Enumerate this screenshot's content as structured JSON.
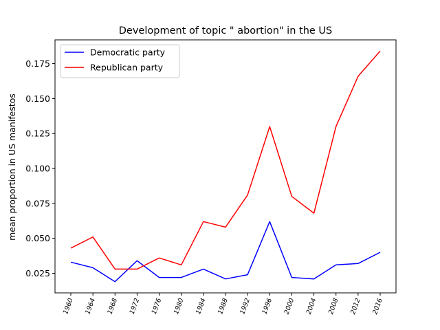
{
  "chart_data": {
    "type": "line",
    "title": "Development of topic \" abortion\" in the US",
    "xlabel": "",
    "ylabel": "mean proportion in US manifestos",
    "categories": [
      "1960",
      "1964",
      "1968",
      "1972",
      "1976",
      "1980",
      "1984",
      "1988",
      "1992",
      "1996",
      "2000",
      "2004",
      "2008",
      "2012",
      "2016"
    ],
    "series": [
      {
        "name": "Democratic party",
        "color": "#0000ff",
        "values": [
          0.033,
          0.029,
          0.019,
          0.034,
          0.022,
          0.022,
          0.028,
          0.021,
          0.024,
          0.062,
          0.022,
          0.021,
          0.031,
          0.032,
          0.04
        ]
      },
      {
        "name": "Republican party",
        "color": "#ff0000",
        "values": [
          0.043,
          0.051,
          0.028,
          0.028,
          0.036,
          0.031,
          0.062,
          0.058,
          0.081,
          0.13,
          0.08,
          0.068,
          0.13,
          0.166,
          0.184
        ]
      }
    ],
    "ylim": [
      0.011,
      0.192
    ],
    "yticks": [
      0.025,
      0.05,
      0.075,
      0.1,
      0.125,
      0.15,
      0.175
    ],
    "ytick_labels": [
      "0.025",
      "0.050",
      "0.075",
      "0.100",
      "0.125",
      "0.150",
      "0.175"
    ],
    "grid": false,
    "legend_position": "top-left"
  }
}
